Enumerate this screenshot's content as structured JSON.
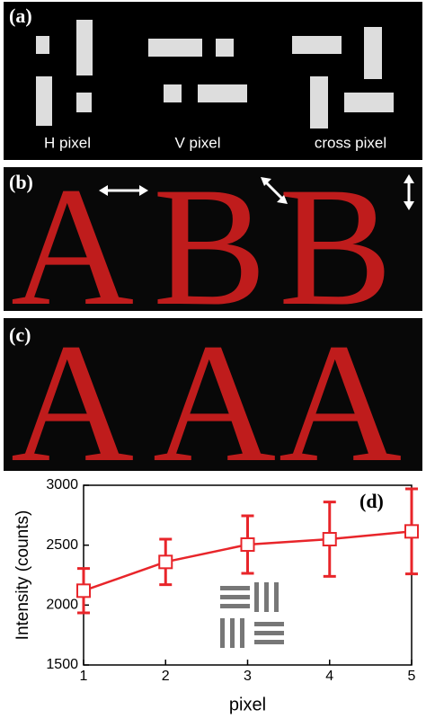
{
  "panels": [
    {
      "label": "(a)",
      "captions": [
        "H pixel",
        "V pixel",
        "cross pixel"
      ]
    },
    {
      "label": "(b)",
      "letters": [
        "A",
        "B",
        "B"
      ]
    },
    {
      "label": "(c)",
      "letters": [
        "A",
        "A",
        "A"
      ]
    }
  ],
  "chart_data": {
    "type": "line",
    "label": "(d)",
    "xlabel": "pixel",
    "ylabel": "Intensity (counts)",
    "x": [
      1,
      2,
      3,
      4,
      5
    ],
    "values": [
      2120,
      2360,
      2505,
      2550,
      2615
    ],
    "errors": [
      185,
      190,
      240,
      310,
      355
    ],
    "color": "#e8252a",
    "xlim": [
      1,
      5
    ],
    "xticks": [
      1,
      2,
      3,
      4,
      5
    ],
    "ylim": [
      1500,
      3000
    ],
    "yticks": [
      1500,
      2000,
      2500,
      3000
    ]
  }
}
